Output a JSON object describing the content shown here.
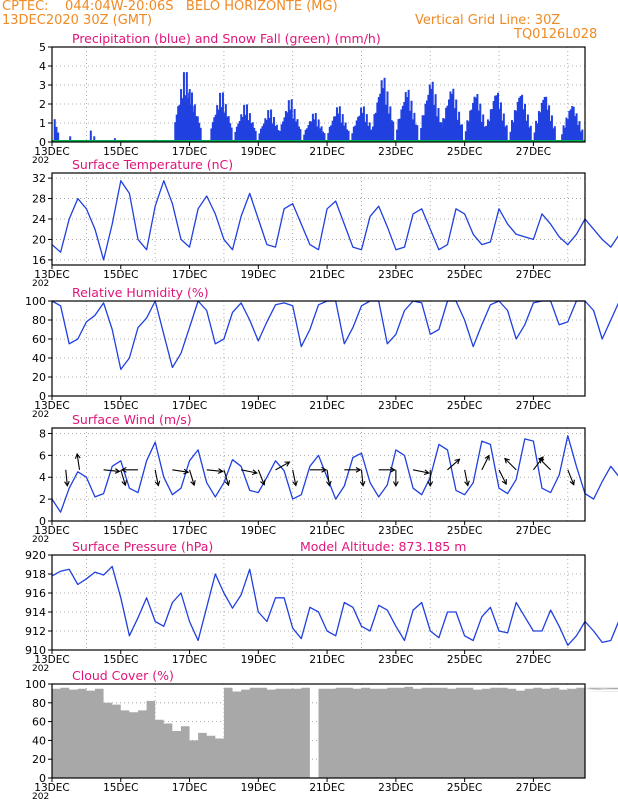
{
  "header": {
    "line1": "CPTEC:    044:04W-20:06S   BELO HORIZONTE (MG)",
    "line2_left": "13DEC2020 30Z (GMT)",
    "line2_right": "Vertical Grid Line: 30Z",
    "line3_right": "TQ0126L028"
  },
  "colors": {
    "header": "#f08a24",
    "title": "#e0157a",
    "line": "#2040e0",
    "snow": "#00b050",
    "cloud": "#a8a8a8",
    "arrow": "#000000"
  },
  "x_axis": {
    "ticks": [
      "13DEC",
      "15DEC",
      "17DEC",
      "19DEC",
      "21DEC",
      "23DEC",
      "25DEC",
      "27DEC"
    ],
    "tick_days": [
      0,
      2,
      4,
      6,
      8,
      10,
      12,
      14
    ],
    "grid_days": [
      1,
      3,
      5,
      7,
      9,
      11,
      13,
      15
    ],
    "range_days": [
      0,
      15.5
    ],
    "stub": "202"
  },
  "chart_data": [
    {
      "id": "precip",
      "type": "bar",
      "title": "Precipitation (blue) and Snow Fall (green) (mm/h)",
      "ylim": [
        0,
        5
      ],
      "yticks": [
        0,
        1,
        2,
        3,
        4,
        5
      ],
      "day_of_max": [
        3.85,
        4.0,
        4.9,
        5.6,
        6.3,
        6.9,
        7.6,
        8.3,
        9.0,
        9.6,
        10.3,
        11.0,
        11.6,
        12.3,
        12.9,
        13.6,
        14.3,
        15.1
      ],
      "peaks": [
        4.1,
        2.9,
        2.9,
        2.2,
        1.9,
        2.5,
        1.7,
        2.1,
        2.1,
        3.8,
        3.1,
        3.6,
        3.2,
        2.9,
        3.0,
        2.9,
        2.8,
        2.2
      ],
      "snow": 0
    },
    {
      "id": "temp",
      "type": "line",
      "title": "Surface Temperature (nC)",
      "ylim": [
        15,
        33
      ],
      "yticks": [
        16,
        20,
        24,
        28,
        32
      ],
      "x_start_day": 0,
      "step_hours": 6,
      "values": [
        19.0,
        17.5,
        24.0,
        28.0,
        26.0,
        22.0,
        16.0,
        23.0,
        31.5,
        29.0,
        20.0,
        18.0,
        26.5,
        31.5,
        27.0,
        20.0,
        18.5,
        26.0,
        28.5,
        25.0,
        20.0,
        18.0,
        24.5,
        29.0,
        24.0,
        19.0,
        18.5,
        26.0,
        27.0,
        23.0,
        19.0,
        18.0,
        26.0,
        27.5,
        23.0,
        18.5,
        18.0,
        24.5,
        26.5,
        22.5,
        18.0,
        18.5,
        25.0,
        26.0,
        22.0,
        18.0,
        19.0,
        26.0,
        25.0,
        21.0,
        19.0,
        19.5,
        26.0,
        23.0,
        21.0,
        20.5,
        20.0,
        25.0,
        23.0,
        20.5,
        19.0,
        21.0,
        24.0,
        22.0,
        20.0,
        18.5,
        21.0,
        24.0,
        22.0,
        19.5,
        18.0,
        20.0,
        23.0,
        21.5,
        19.0,
        17.5,
        20.0,
        23.0,
        22.0,
        19.5,
        18.5,
        19.5,
        23.5,
        22.0,
        19.0,
        18.0,
        19.5,
        22.5,
        23.0,
        19.0,
        17.5,
        22.0,
        26.5,
        21.0
      ]
    },
    {
      "id": "rh",
      "type": "line",
      "title": "Relative Humidity (%)",
      "ylim": [
        0,
        100
      ],
      "yticks": [
        0,
        20,
        40,
        60,
        80,
        100
      ],
      "x_start_day": 0,
      "step_hours": 6,
      "values": [
        100,
        95,
        55,
        60,
        78,
        85,
        98,
        70,
        28,
        40,
        72,
        82,
        100,
        65,
        30,
        45,
        72,
        100,
        90,
        55,
        60,
        88,
        98,
        80,
        58,
        78,
        96,
        98,
        95,
        52,
        70,
        96,
        100,
        100,
        55,
        72,
        95,
        100,
        100,
        55,
        65,
        90,
        100,
        98,
        65,
        70,
        100,
        100,
        80,
        52,
        75,
        96,
        100,
        90,
        60,
        75,
        98,
        100,
        100,
        75,
        78,
        100,
        100,
        90,
        60,
        80,
        100,
        100,
        88,
        66,
        82,
        100,
        100,
        85,
        60,
        80,
        100,
        100,
        84,
        65,
        82,
        100,
        100,
        85,
        70,
        92,
        100,
        100,
        86,
        72,
        90,
        100,
        100,
        52,
        72,
        100
      ]
    },
    {
      "id": "wind",
      "type": "line",
      "title": "Surface Wind (m/s)",
      "ylim": [
        0,
        8.5
      ],
      "yticks": [
        0,
        2,
        4,
        6,
        8
      ],
      "x_start_day": 0,
      "step_hours": 6,
      "values": [
        2.0,
        0.8,
        3.0,
        4.5,
        4.0,
        2.2,
        2.5,
        5.0,
        5.5,
        3.0,
        2.6,
        5.5,
        7.2,
        4.0,
        2.4,
        3.0,
        5.5,
        6.5,
        3.5,
        2.2,
        3.5,
        5.6,
        5.0,
        2.8,
        2.6,
        4.0,
        5.5,
        4.6,
        2.0,
        2.4,
        5.0,
        6.0,
        4.0,
        2.0,
        3.2,
        5.8,
        6.2,
        3.5,
        2.2,
        3.3,
        6.5,
        6.0,
        3.0,
        2.4,
        4.0,
        7.0,
        6.5,
        2.8,
        2.4,
        3.5,
        7.3,
        7.0,
        3.0,
        2.5,
        3.8,
        7.5,
        7.3,
        3.0,
        2.6,
        4.2,
        7.8,
        5.0,
        2.5,
        2.0,
        3.6,
        5.0,
        4.0,
        2.2,
        2.0,
        3.8,
        3.0,
        2.5,
        2.2,
        3.5,
        3.8,
        2.8,
        2.4,
        3.6,
        3.8,
        2.6,
        2.3,
        3.2,
        3.6,
        2.7,
        2.2,
        3.0,
        3.8,
        2.6,
        2.3,
        2.5,
        3.5,
        2.8,
        2.3,
        4.5,
        2.0,
        3.3
      ],
      "arrows": [
        {
          "day": 0.4,
          "dx": 0.1,
          "dy": 1
        },
        {
          "day": 0.8,
          "dx": -0.15,
          "dy": -1
        },
        {
          "day": 1.5,
          "dx": 1,
          "dy": 0.1
        },
        {
          "day": 2.0,
          "dx": 0.3,
          "dy": 1
        },
        {
          "day": 2.5,
          "dx": -1,
          "dy": 0
        },
        {
          "day": 3.0,
          "dx": 0.2,
          "dy": 1
        },
        {
          "day": 3.5,
          "dx": 1,
          "dy": 0.15
        },
        {
          "day": 4.0,
          "dx": 0.3,
          "dy": 1
        },
        {
          "day": 4.5,
          "dx": 1,
          "dy": 0.1
        },
        {
          "day": 5.0,
          "dx": 0.3,
          "dy": 1
        },
        {
          "day": 5.5,
          "dx": 1,
          "dy": 0.2
        },
        {
          "day": 6.0,
          "dx": 0.4,
          "dy": 1
        },
        {
          "day": 6.5,
          "dx": 0.9,
          "dy": -0.5
        },
        {
          "day": 7.0,
          "dx": 0.2,
          "dy": 1
        },
        {
          "day": 7.5,
          "dx": 1,
          "dy": 0
        },
        {
          "day": 8.0,
          "dx": 0.15,
          "dy": 1
        },
        {
          "day": 8.5,
          "dx": 1,
          "dy": 0
        },
        {
          "day": 9.0,
          "dx": 0.1,
          "dy": 1
        },
        {
          "day": 9.5,
          "dx": 1,
          "dy": 0
        },
        {
          "day": 10.0,
          "dx": 0,
          "dy": 1
        },
        {
          "day": 10.5,
          "dx": 1,
          "dy": 0.2
        },
        {
          "day": 11.0,
          "dx": 0,
          "dy": 1
        },
        {
          "day": 11.5,
          "dx": 0.8,
          "dy": -0.7
        },
        {
          "day": 12.0,
          "dx": 0.2,
          "dy": 1
        },
        {
          "day": 12.5,
          "dx": 0.5,
          "dy": -1
        },
        {
          "day": 13.0,
          "dx": 0.5,
          "dy": 1
        },
        {
          "day": 13.5,
          "dx": -0.7,
          "dy": -0.7
        },
        {
          "day": 14.0,
          "dx": 0.6,
          "dy": -0.8
        },
        {
          "day": 14.5,
          "dx": -0.7,
          "dy": -0.7
        },
        {
          "day": 15.0,
          "dx": 0.4,
          "dy": 1
        }
      ]
    },
    {
      "id": "press",
      "type": "line",
      "title": "Surface Pressure (hPa)",
      "subtitle": "Model Altitude: 873.185  m",
      "ylim": [
        910,
        920
      ],
      "yticks": [
        910,
        912,
        914,
        916,
        918,
        920
      ],
      "x_start_day": 0,
      "step_hours": 6,
      "values": [
        917.8,
        918.3,
        918.5,
        916.9,
        917.5,
        918.2,
        917.9,
        918.8,
        915.5,
        911.5,
        913.4,
        915.5,
        913.0,
        912.5,
        915.0,
        916.0,
        913.0,
        911.0,
        914.5,
        918.0,
        916.0,
        914.4,
        915.8,
        918.5,
        914.0,
        913.0,
        915.5,
        915.5,
        912.3,
        911.2,
        914.5,
        914.0,
        912.0,
        911.5,
        915.0,
        914.5,
        912.5,
        912.0,
        914.7,
        914.2,
        912.5,
        911.0,
        914.2,
        915.0,
        912.0,
        911.3,
        914.0,
        914.0,
        911.5,
        911.0,
        913.5,
        914.5,
        912.0,
        911.8,
        915.0,
        913.5,
        912.0,
        912.0,
        914.2,
        912.5,
        910.5,
        911.5,
        913.0,
        912.0,
        910.8,
        911.0,
        913.2,
        912.5,
        910.5,
        910.6,
        913.8,
        912.8,
        911.5,
        910.8,
        913.2,
        912.8,
        911.0,
        910.5,
        913.5,
        913.0,
        911.0,
        910.5,
        912.8,
        912.5,
        910.8,
        910.5,
        912.8,
        912.4,
        911.5,
        910.5,
        912.8,
        912.0,
        910.6,
        910.8,
        911.5,
        910.0
      ],
      "altitude_m": 873.185
    },
    {
      "id": "cloud",
      "type": "area",
      "title": "Cloud Cover (%)",
      "ylim": [
        0,
        100
      ],
      "yticks": [
        0,
        20,
        40,
        60,
        80,
        100
      ],
      "x_start_day": 0,
      "step_hours": 6,
      "values": [
        95,
        96,
        94,
        95,
        93,
        95,
        80,
        78,
        72,
        70,
        72,
        82,
        62,
        58,
        50,
        55,
        40,
        48,
        45,
        42,
        96,
        92,
        94,
        96,
        96,
        94,
        95,
        95,
        95,
        96,
        0,
        95,
        95,
        96,
        96,
        95,
        96,
        95,
        95,
        96,
        96,
        97,
        95,
        96,
        96,
        96,
        95,
        96,
        96,
        94,
        95,
        96,
        96,
        95,
        93,
        95,
        96,
        95,
        96,
        94,
        95,
        96,
        95,
        96,
        96,
        95,
        94,
        96,
        95,
        95,
        96,
        96,
        94,
        95,
        96,
        95,
        96,
        95,
        96,
        95,
        94,
        96,
        95,
        96,
        95,
        94,
        95,
        96,
        95,
        96,
        92,
        95,
        96,
        94,
        96,
        95
      ]
    }
  ]
}
